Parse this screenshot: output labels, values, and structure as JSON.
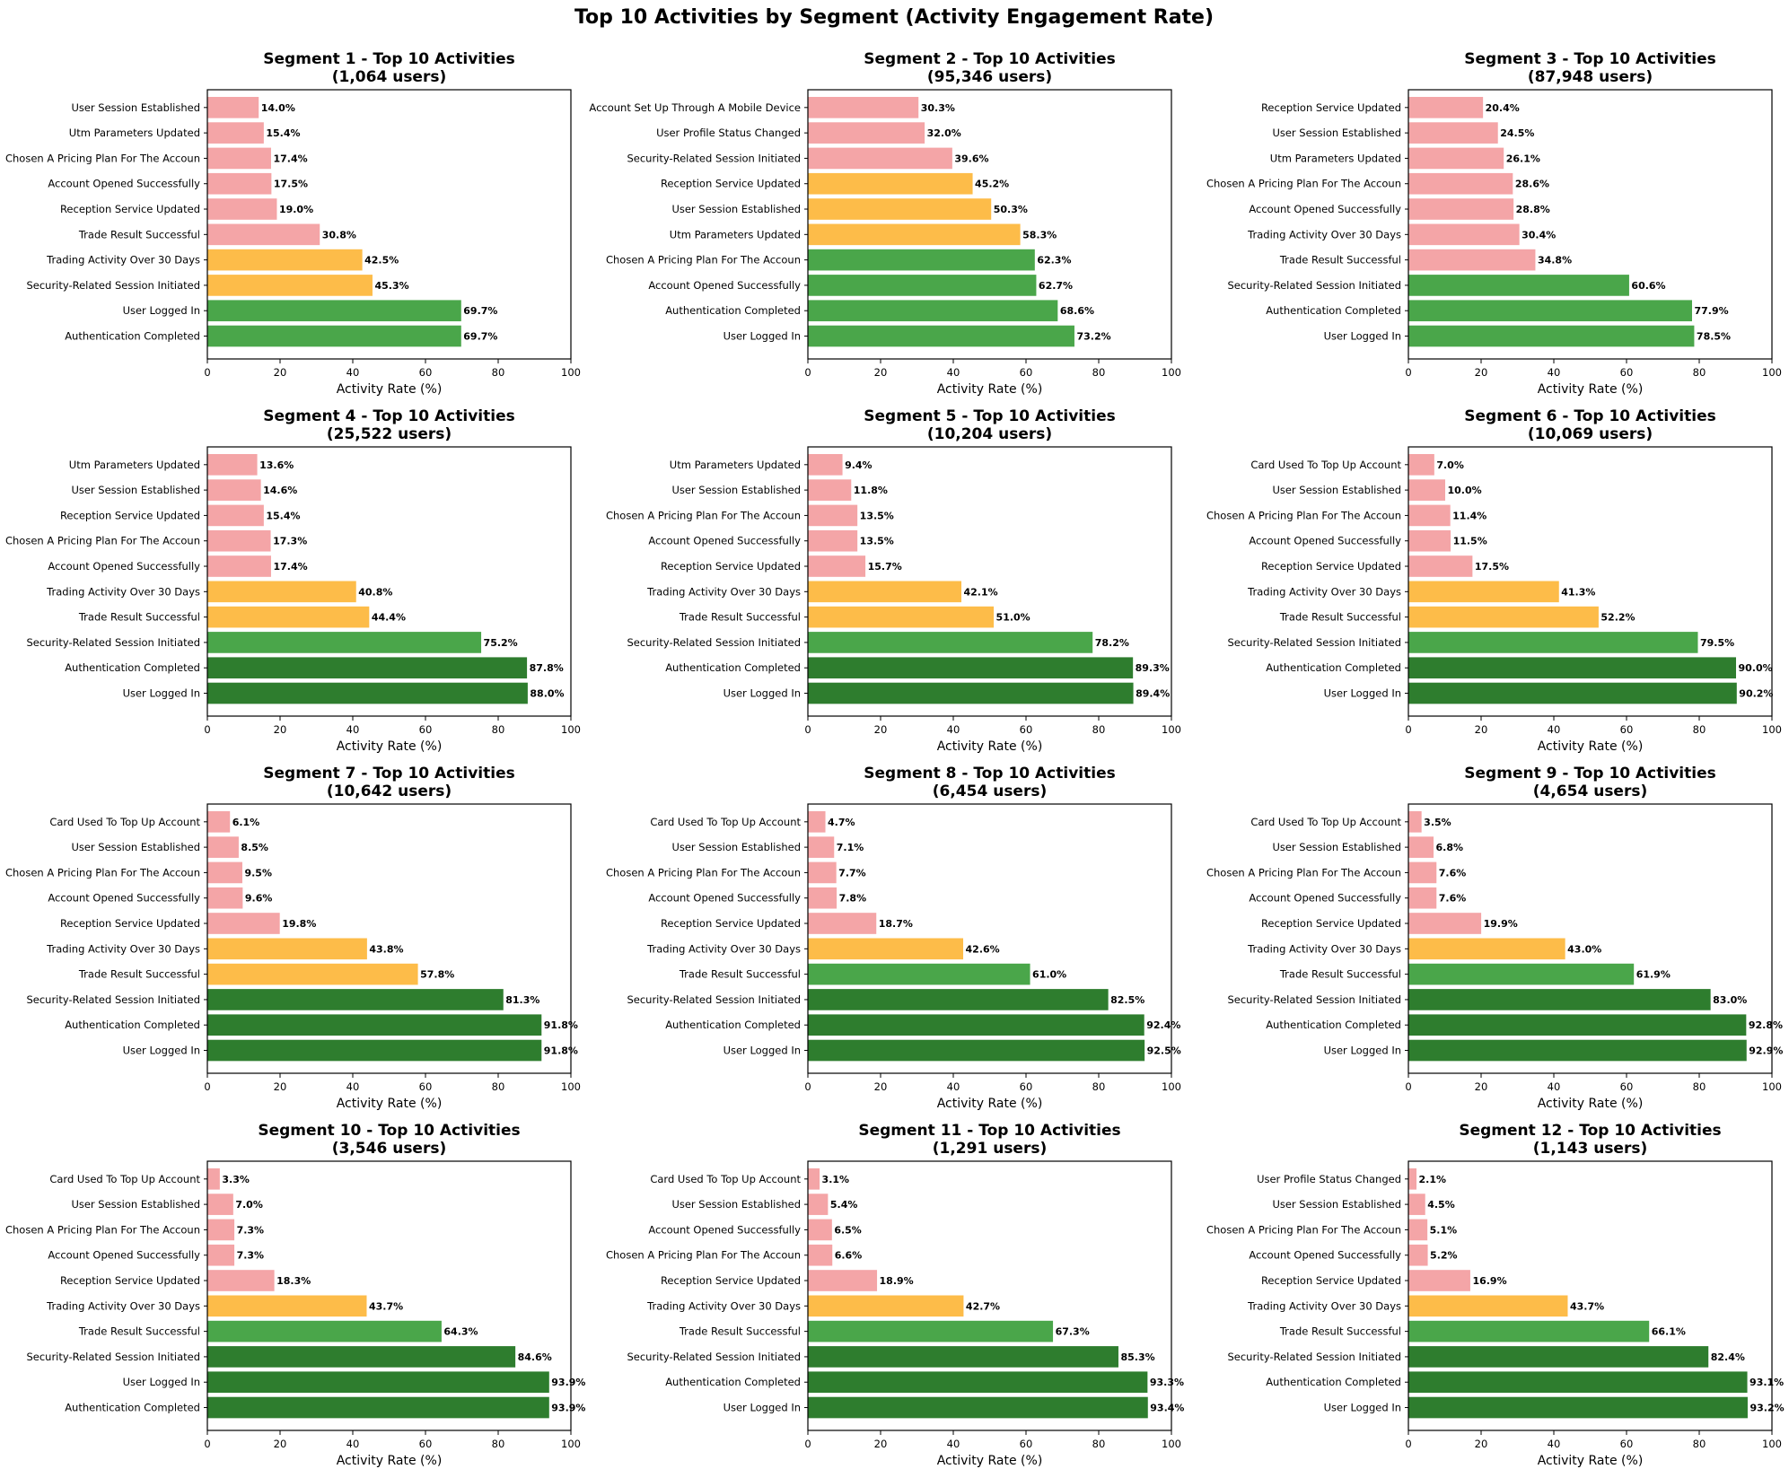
{
  "colors": {
    "low": "#f4a5a7",
    "mid": "#fdbc49",
    "high": "#4aa64a",
    "top": "#2e7d2e"
  },
  "chart_data": {
    "title": "Top 10 Activities by Segment (Activity Engagement Rate)",
    "type": "bar",
    "orientation": "horizontal",
    "xlabel": "Activity Rate (%)",
    "xlim": [
      0,
      100
    ],
    "xticks": [
      "0",
      "20",
      "40",
      "60",
      "80",
      "100"
    ],
    "color_thresholds": {
      "mid_at_least": 40,
      "high_at_least": 60,
      "top_at_least": 80
    },
    "panels": [
      {
        "title": "Segment 1 - Top 10 Activities",
        "users": "(1,064 users)",
        "categories": [
          "User Session Established",
          "Utm Parameters Updated",
          "Chosen A Pricing Plan For The Accoun",
          "Account Opened Successfully",
          "Reception Service Updated",
          "Trade Result Successful",
          "Trading Activity Over 30 Days",
          "Security-Related Session Initiated",
          "User Logged In",
          "Authentication Completed"
        ],
        "values": [
          14.0,
          15.4,
          17.4,
          17.5,
          19.0,
          30.8,
          42.5,
          45.3,
          69.7,
          69.7
        ],
        "labels": [
          "14.0%",
          "15.4%",
          "17.4%",
          "17.5%",
          "19.0%",
          "30.8%",
          "42.5%",
          "45.3%",
          "69.7%",
          "69.7%"
        ]
      },
      {
        "title": "Segment 2 - Top 10 Activities",
        "users": "(95,346 users)",
        "categories": [
          "Account Set Up Through A Mobile Device",
          "User Profile Status Changed",
          "Security-Related Session Initiated",
          "Reception Service Updated",
          "User Session Established",
          "Utm Parameters Updated",
          "Chosen A Pricing Plan For The Accoun",
          "Account Opened Successfully",
          "Authentication Completed",
          "User Logged In"
        ],
        "values": [
          30.3,
          32.0,
          39.6,
          45.2,
          50.3,
          58.3,
          62.3,
          62.7,
          68.6,
          73.2
        ],
        "labels": [
          "30.3%",
          "32.0%",
          "39.6%",
          "45.2%",
          "50.3%",
          "58.3%",
          "62.3%",
          "62.7%",
          "68.6%",
          "73.2%"
        ]
      },
      {
        "title": "Segment 3 - Top 10 Activities",
        "users": "(87,948 users)",
        "categories": [
          "Reception Service Updated",
          "User Session Established",
          "Utm Parameters Updated",
          "Chosen A Pricing Plan For The Accoun",
          "Account Opened Successfully",
          "Trading Activity Over 30 Days",
          "Trade Result Successful",
          "Security-Related Session Initiated",
          "Authentication Completed",
          "User Logged In"
        ],
        "values": [
          20.4,
          24.5,
          26.1,
          28.6,
          28.8,
          30.4,
          34.8,
          60.6,
          77.9,
          78.5
        ],
        "labels": [
          "20.4%",
          "24.5%",
          "26.1%",
          "28.6%",
          "28.8%",
          "30.4%",
          "34.8%",
          "60.6%",
          "77.9%",
          "78.5%"
        ]
      },
      {
        "title": "Segment 4 - Top 10 Activities",
        "users": "(25,522 users)",
        "categories": [
          "Utm Parameters Updated",
          "User Session Established",
          "Reception Service Updated",
          "Chosen A Pricing Plan For The Accoun",
          "Account Opened Successfully",
          "Trading Activity Over 30 Days",
          "Trade Result Successful",
          "Security-Related Session Initiated",
          "Authentication Completed",
          "User Logged In"
        ],
        "values": [
          13.6,
          14.6,
          15.4,
          17.3,
          17.4,
          40.8,
          44.4,
          75.2,
          87.8,
          88.0
        ],
        "labels": [
          "13.6%",
          "14.6%",
          "15.4%",
          "17.3%",
          "17.4%",
          "40.8%",
          "44.4%",
          "75.2%",
          "87.8%",
          "88.0%"
        ]
      },
      {
        "title": "Segment 5 - Top 10 Activities",
        "users": "(10,204 users)",
        "categories": [
          "Utm Parameters Updated",
          "User Session Established",
          "Chosen A Pricing Plan For The Accoun",
          "Account Opened Successfully",
          "Reception Service Updated",
          "Trading Activity Over 30 Days",
          "Trade Result Successful",
          "Security-Related Session Initiated",
          "Authentication Completed",
          "User Logged In"
        ],
        "values": [
          9.4,
          11.8,
          13.5,
          13.5,
          15.7,
          42.1,
          51.0,
          78.2,
          89.3,
          89.4
        ],
        "labels": [
          "9.4%",
          "11.8%",
          "13.5%",
          "13.5%",
          "15.7%",
          "42.1%",
          "51.0%",
          "78.2%",
          "89.3%",
          "89.4%"
        ]
      },
      {
        "title": "Segment 6 - Top 10 Activities",
        "users": "(10,069 users)",
        "categories": [
          "Card Used To Top Up Account",
          "User Session Established",
          "Chosen A Pricing Plan For The Accoun",
          "Account Opened Successfully",
          "Reception Service Updated",
          "Trading Activity Over 30 Days",
          "Trade Result Successful",
          "Security-Related Session Initiated",
          "Authentication Completed",
          "User Logged In"
        ],
        "values": [
          7.0,
          10.0,
          11.4,
          11.5,
          17.5,
          41.3,
          52.2,
          79.5,
          90.0,
          90.2
        ],
        "labels": [
          "7.0%",
          "10.0%",
          "11.4%",
          "11.5%",
          "17.5%",
          "41.3%",
          "52.2%",
          "79.5%",
          "90.0%",
          "90.2%"
        ]
      },
      {
        "title": "Segment 7 - Top 10 Activities",
        "users": "(10,642 users)",
        "categories": [
          "Card Used To Top Up Account",
          "User Session Established",
          "Chosen A Pricing Plan For The Accoun",
          "Account Opened Successfully",
          "Reception Service Updated",
          "Trading Activity Over 30 Days",
          "Trade Result Successful",
          "Security-Related Session Initiated",
          "Authentication Completed",
          "User Logged In"
        ],
        "values": [
          6.1,
          8.5,
          9.5,
          9.6,
          19.8,
          43.8,
          57.8,
          81.3,
          91.8,
          91.8
        ],
        "labels": [
          "6.1%",
          "8.5%",
          "9.5%",
          "9.6%",
          "19.8%",
          "43.8%",
          "57.8%",
          "81.3%",
          "91.8%",
          "91.8%"
        ]
      },
      {
        "title": "Segment 8 - Top 10 Activities",
        "users": "(6,454 users)",
        "categories": [
          "Card Used To Top Up Account",
          "User Session Established",
          "Chosen A Pricing Plan For The Accoun",
          "Account Opened Successfully",
          "Reception Service Updated",
          "Trading Activity Over 30 Days",
          "Trade Result Successful",
          "Security-Related Session Initiated",
          "Authentication Completed",
          "User Logged In"
        ],
        "values": [
          4.7,
          7.1,
          7.7,
          7.8,
          18.7,
          42.6,
          61.0,
          82.5,
          92.4,
          92.5
        ],
        "labels": [
          "4.7%",
          "7.1%",
          "7.7%",
          "7.8%",
          "18.7%",
          "42.6%",
          "61.0%",
          "82.5%",
          "92.4%",
          "92.5%"
        ]
      },
      {
        "title": "Segment 9 - Top 10 Activities",
        "users": "(4,654 users)",
        "categories": [
          "Card Used To Top Up Account",
          "User Session Established",
          "Chosen A Pricing Plan For The Accoun",
          "Account Opened Successfully",
          "Reception Service Updated",
          "Trading Activity Over 30 Days",
          "Trade Result Successful",
          "Security-Related Session Initiated",
          "Authentication Completed",
          "User Logged In"
        ],
        "values": [
          3.5,
          6.8,
          7.6,
          7.6,
          19.9,
          43.0,
          61.9,
          83.0,
          92.8,
          92.9
        ],
        "labels": [
          "3.5%",
          "6.8%",
          "7.6%",
          "7.6%",
          "19.9%",
          "43.0%",
          "61.9%",
          "83.0%",
          "92.8%",
          "92.9%"
        ]
      },
      {
        "title": "Segment 10 - Top 10 Activities",
        "users": "(3,546 users)",
        "categories": [
          "Card Used To Top Up Account",
          "User Session Established",
          "Chosen A Pricing Plan For The Accoun",
          "Account Opened Successfully",
          "Reception Service Updated",
          "Trading Activity Over 30 Days",
          "Trade Result Successful",
          "Security-Related Session Initiated",
          "User Logged In",
          "Authentication Completed"
        ],
        "values": [
          3.3,
          7.0,
          7.3,
          7.3,
          18.3,
          43.7,
          64.3,
          84.6,
          93.9,
          93.9
        ],
        "labels": [
          "3.3%",
          "7.0%",
          "7.3%",
          "7.3%",
          "18.3%",
          "43.7%",
          "64.3%",
          "84.6%",
          "93.9%",
          "93.9%"
        ]
      },
      {
        "title": "Segment 11 - Top 10 Activities",
        "users": "(1,291 users)",
        "categories": [
          "Card Used To Top Up Account",
          "User Session Established",
          "Account Opened Successfully",
          "Chosen A Pricing Plan For The Accoun",
          "Reception Service Updated",
          "Trading Activity Over 30 Days",
          "Trade Result Successful",
          "Security-Related Session Initiated",
          "Authentication Completed",
          "User Logged In"
        ],
        "values": [
          3.1,
          5.4,
          6.5,
          6.6,
          18.9,
          42.7,
          67.3,
          85.3,
          93.3,
          93.4
        ],
        "labels": [
          "3.1%",
          "5.4%",
          "6.5%",
          "6.6%",
          "18.9%",
          "42.7%",
          "67.3%",
          "85.3%",
          "93.3%",
          "93.4%"
        ]
      },
      {
        "title": "Segment 12 - Top 10 Activities",
        "users": "(1,143 users)",
        "categories": [
          "User Profile Status Changed",
          "User Session Established",
          "Chosen A Pricing Plan For The Accoun",
          "Account Opened Successfully",
          "Reception Service Updated",
          "Trading Activity Over 30 Days",
          "Trade Result Successful",
          "Security-Related Session Initiated",
          "Authentication Completed",
          "User Logged In"
        ],
        "values": [
          2.1,
          4.5,
          5.1,
          5.2,
          16.9,
          43.7,
          66.1,
          82.4,
          93.1,
          93.2
        ],
        "labels": [
          "2.1%",
          "4.5%",
          "5.1%",
          "5.2%",
          "16.9%",
          "43.7%",
          "66.1%",
          "82.4%",
          "93.1%",
          "93.2%"
        ]
      }
    ]
  }
}
